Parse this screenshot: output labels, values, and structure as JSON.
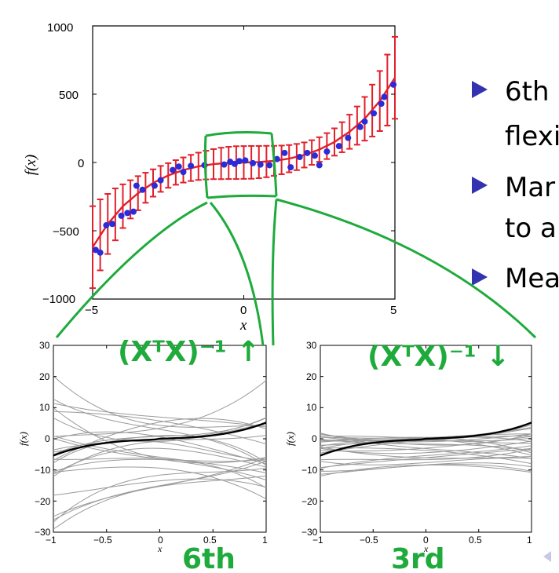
{
  "chart_data": [
    {
      "type": "scatter",
      "panel": "main",
      "xlabel": "x",
      "ylabel": "f(x)",
      "xlim": [
        -5,
        5
      ],
      "ylim": [
        -1000,
        1000
      ],
      "xticks": [
        "−5",
        "0",
        "5"
      ],
      "yticks": [
        "1000",
        "500",
        "0",
        "−500",
        "−1000"
      ],
      "points": [
        [
          -4.9,
          -640
        ],
        [
          -4.75,
          -660
        ],
        [
          -4.55,
          -460
        ],
        [
          -4.35,
          -450
        ],
        [
          -4.05,
          -390
        ],
        [
          -3.85,
          -370
        ],
        [
          -3.65,
          -360
        ],
        [
          -3.55,
          -170
        ],
        [
          -3.35,
          -200
        ],
        [
          -2.95,
          -170
        ],
        [
          -2.75,
          -130
        ],
        [
          -2.35,
          -55
        ],
        [
          -2.15,
          -30
        ],
        [
          -2.0,
          -70
        ],
        [
          -1.75,
          -25
        ],
        [
          -1.3,
          -20
        ],
        [
          -0.65,
          -15
        ],
        [
          -0.45,
          5
        ],
        [
          -0.3,
          -10
        ],
        [
          -0.15,
          10
        ],
        [
          0.05,
          15
        ],
        [
          0.3,
          -5
        ],
        [
          0.55,
          -15
        ],
        [
          0.85,
          -20
        ],
        [
          1.1,
          25
        ],
        [
          1.35,
          70
        ],
        [
          1.55,
          -35
        ],
        [
          1.85,
          40
        ],
        [
          2.1,
          70
        ],
        [
          2.35,
          50
        ],
        [
          2.5,
          -20
        ],
        [
          2.75,
          80
        ],
        [
          3.15,
          120
        ],
        [
          3.45,
          180
        ],
        [
          3.85,
          260
        ],
        [
          4.0,
          300
        ],
        [
          4.3,
          360
        ],
        [
          4.55,
          430
        ],
        [
          4.65,
          480
        ],
        [
          4.95,
          570
        ]
      ],
      "fit_curve": [
        [
          -5,
          -620
        ],
        [
          -4.5,
          -450
        ],
        [
          -4,
          -320
        ],
        [
          -3.5,
          -225
        ],
        [
          -3,
          -150
        ],
        [
          -2.5,
          -95
        ],
        [
          -2,
          -55
        ],
        [
          -1.5,
          -28
        ],
        [
          -1,
          -12
        ],
        [
          -0.5,
          -3
        ],
        [
          0,
          0
        ],
        [
          0.5,
          3
        ],
        [
          1,
          12
        ],
        [
          1.5,
          28
        ],
        [
          2,
          55
        ],
        [
          2.5,
          95
        ],
        [
          3,
          150
        ],
        [
          3.5,
          225
        ],
        [
          4,
          320
        ],
        [
          4.5,
          450
        ],
        [
          5,
          620
        ]
      ],
      "error_bars": [
        [
          -5,
          -620,
          300
        ],
        [
          -4.75,
          -530,
          260
        ],
        [
          -4.5,
          -450,
          220
        ],
        [
          -4.25,
          -380,
          190
        ],
        [
          -4,
          -320,
          160
        ],
        [
          -3.75,
          -270,
          140
        ],
        [
          -3.5,
          -225,
          125
        ],
        [
          -3.25,
          -185,
          110
        ],
        [
          -3,
          -150,
          100
        ],
        [
          -2.75,
          -120,
          95
        ],
        [
          -2.5,
          -95,
          90
        ],
        [
          -2.25,
          -73,
          90
        ],
        [
          -2,
          -55,
          92
        ],
        [
          -1.75,
          -40,
          96
        ],
        [
          -1.5,
          -28,
          100
        ],
        [
          -1.25,
          -19,
          105
        ],
        [
          -1,
          -12,
          110
        ],
        [
          -0.75,
          -7,
          115
        ],
        [
          -0.5,
          -3,
          118
        ],
        [
          -0.25,
          -1,
          120
        ],
        [
          0,
          0,
          120
        ],
        [
          0.25,
          1,
          120
        ],
        [
          0.5,
          3,
          118
        ],
        [
          0.75,
          7,
          115
        ],
        [
          1,
          12,
          110
        ],
        [
          1.25,
          19,
          105
        ],
        [
          1.5,
          28,
          100
        ],
        [
          1.75,
          40,
          96
        ],
        [
          2,
          55,
          92
        ],
        [
          2.25,
          73,
          90
        ],
        [
          2.5,
          95,
          90
        ],
        [
          2.75,
          120,
          95
        ],
        [
          3,
          150,
          100
        ],
        [
          3.25,
          185,
          110
        ],
        [
          3.5,
          225,
          125
        ],
        [
          3.75,
          270,
          140
        ],
        [
          4,
          320,
          160
        ],
        [
          4.25,
          380,
          190
        ],
        [
          4.5,
          450,
          220
        ],
        [
          4.75,
          530,
          260
        ],
        [
          5,
          620,
          300
        ]
      ],
      "fit_color": "#e2202a",
      "point_color": "#2b2bd8"
    },
    {
      "type": "line",
      "panel": "6th",
      "xlabel": "x",
      "ylabel": "f(x)",
      "xlim": [
        -1,
        1
      ],
      "ylim": [
        -30,
        30
      ],
      "xticks": [
        "−1",
        "−0.5",
        "0",
        "0.5",
        "1"
      ],
      "yticks": [
        "30",
        "20",
        "10",
        "0",
        "−10",
        "−20",
        "−30"
      ],
      "mean_curve": "0.4*(5x)^3/125 scaled: y = 5 x^3 + 2 x",
      "n_samples": 25,
      "sample_spread": 12
    },
    {
      "type": "line",
      "panel": "3rd",
      "xlabel": "x",
      "ylabel": "f(x)",
      "xlim": [
        -1,
        1
      ],
      "ylim": [
        -30,
        30
      ],
      "xticks": [
        "−1",
        "−0.5",
        "0",
        "0.5",
        "1"
      ],
      "yticks": [
        "30",
        "20",
        "10",
        "0",
        "−10",
        "−20",
        "−30"
      ],
      "n_samples": 25,
      "sample_spread": 5
    }
  ],
  "bullets": [
    {
      "lines": [
        "6th",
        "flexi"
      ]
    },
    {
      "lines": [
        "Mar",
        "to a"
      ]
    },
    {
      "lines": [
        "Mea"
      ]
    }
  ],
  "annotations": {
    "left_formula": "(XᵀX)⁻¹ ↑",
    "right_formula": "(XᵀX)⁻¹ ↓",
    "left_label": "6th",
    "right_label": "3rd"
  },
  "colors": {
    "bullet": "#3333b0",
    "annotation": "#1faa3c",
    "sample": "#9a9a9a",
    "mean": "#000000"
  }
}
